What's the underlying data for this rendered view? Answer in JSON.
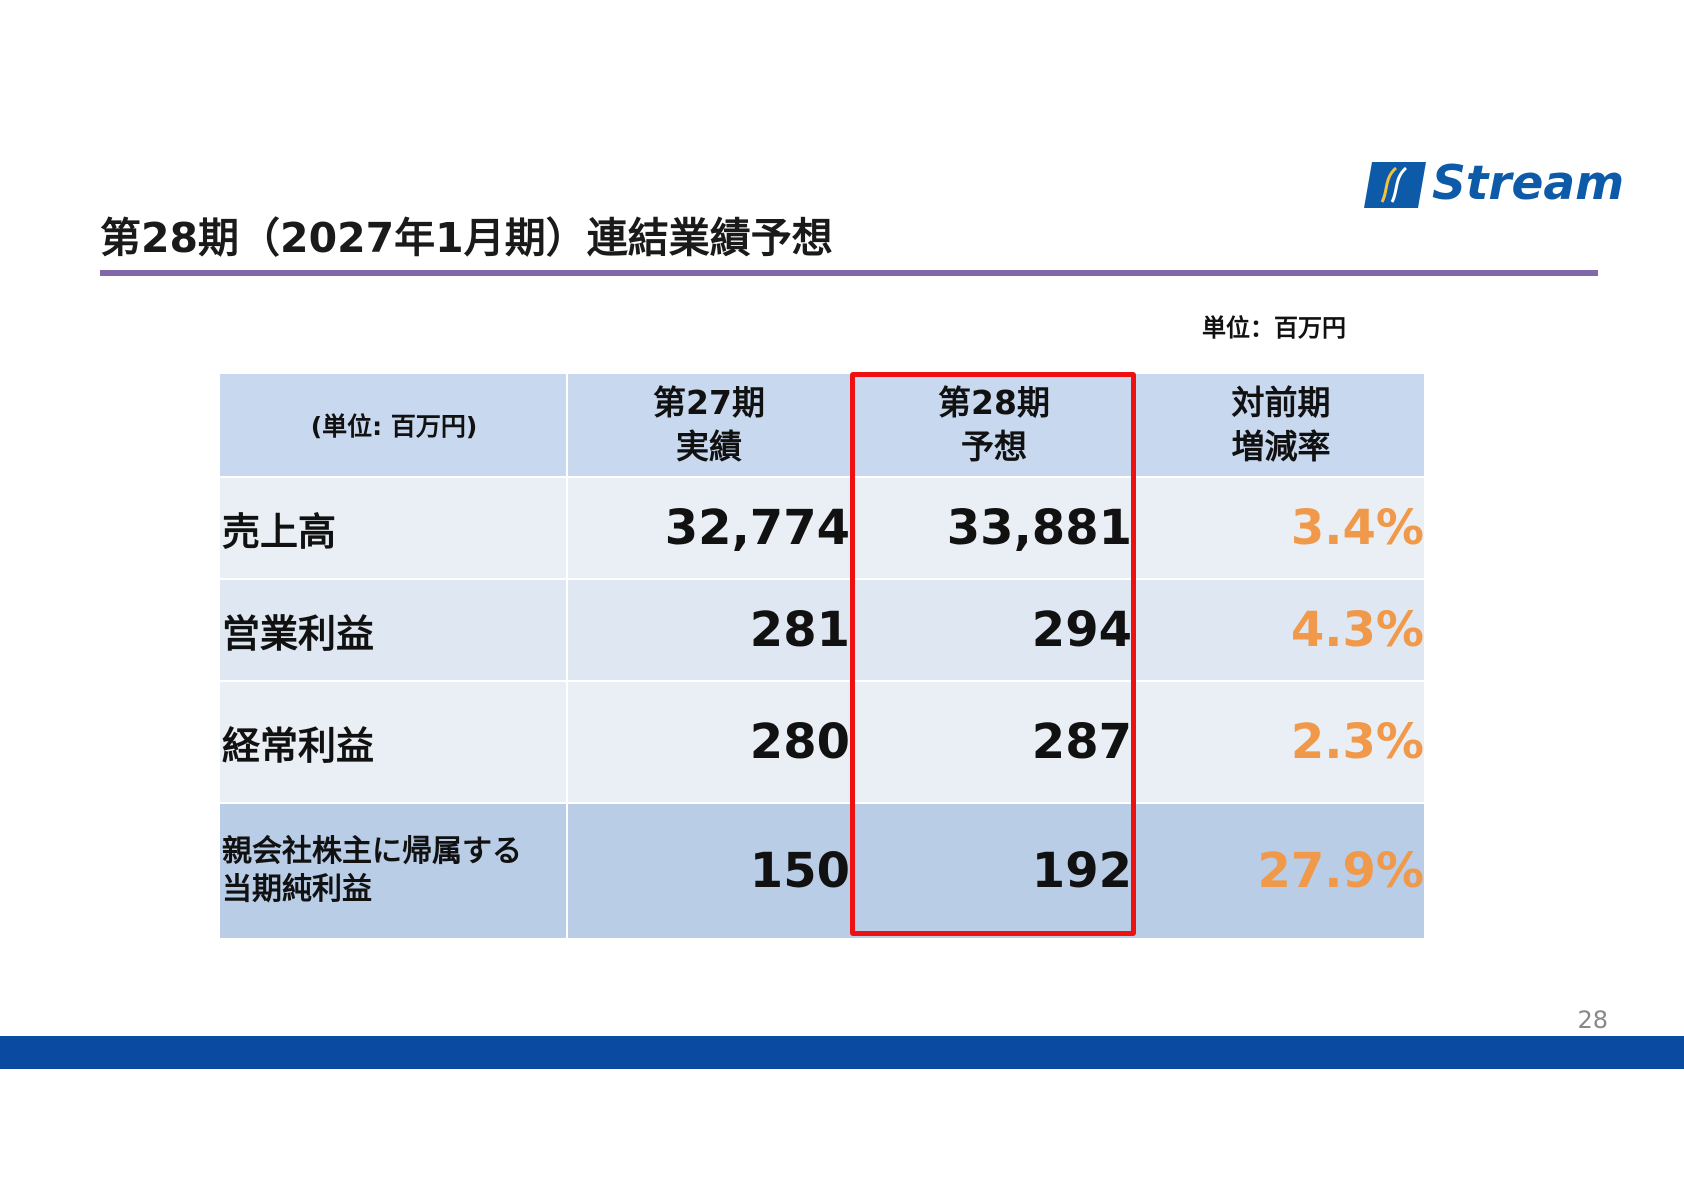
{
  "logo": {
    "text": "Stream",
    "color": "#0d5aa8"
  },
  "title": "第28期（2027年1月期）連結業績予想",
  "unit_note": "単位：百万円",
  "table": {
    "header": {
      "unit": "(単位: 百万円)",
      "col1_line1": "第27期",
      "col1_line2": "実績",
      "col2_line1": "第28期",
      "col2_line2": "予想",
      "col3_line1": "対前期",
      "col3_line2": "増減率"
    },
    "rows": [
      {
        "label": "売上高",
        "prev": "32,774",
        "forecast": "33,881",
        "change": "3.4%"
      },
      {
        "label": "営業利益",
        "prev": "281",
        "forecast": "294",
        "change": "4.3%"
      },
      {
        "label": "経常利益",
        "prev": "280",
        "forecast": "287",
        "change": "2.3%"
      },
      {
        "label_line1": "親会社株主に帰属する",
        "label_line2": "当期純利益",
        "prev": "150",
        "forecast": "192",
        "change": "27.9%"
      }
    ]
  },
  "colors": {
    "accent_rule": "#8268a8",
    "footer": "#0a4aa0",
    "highlight": "#ee1111",
    "change_text": "#f0994a"
  },
  "page_number": "28"
}
